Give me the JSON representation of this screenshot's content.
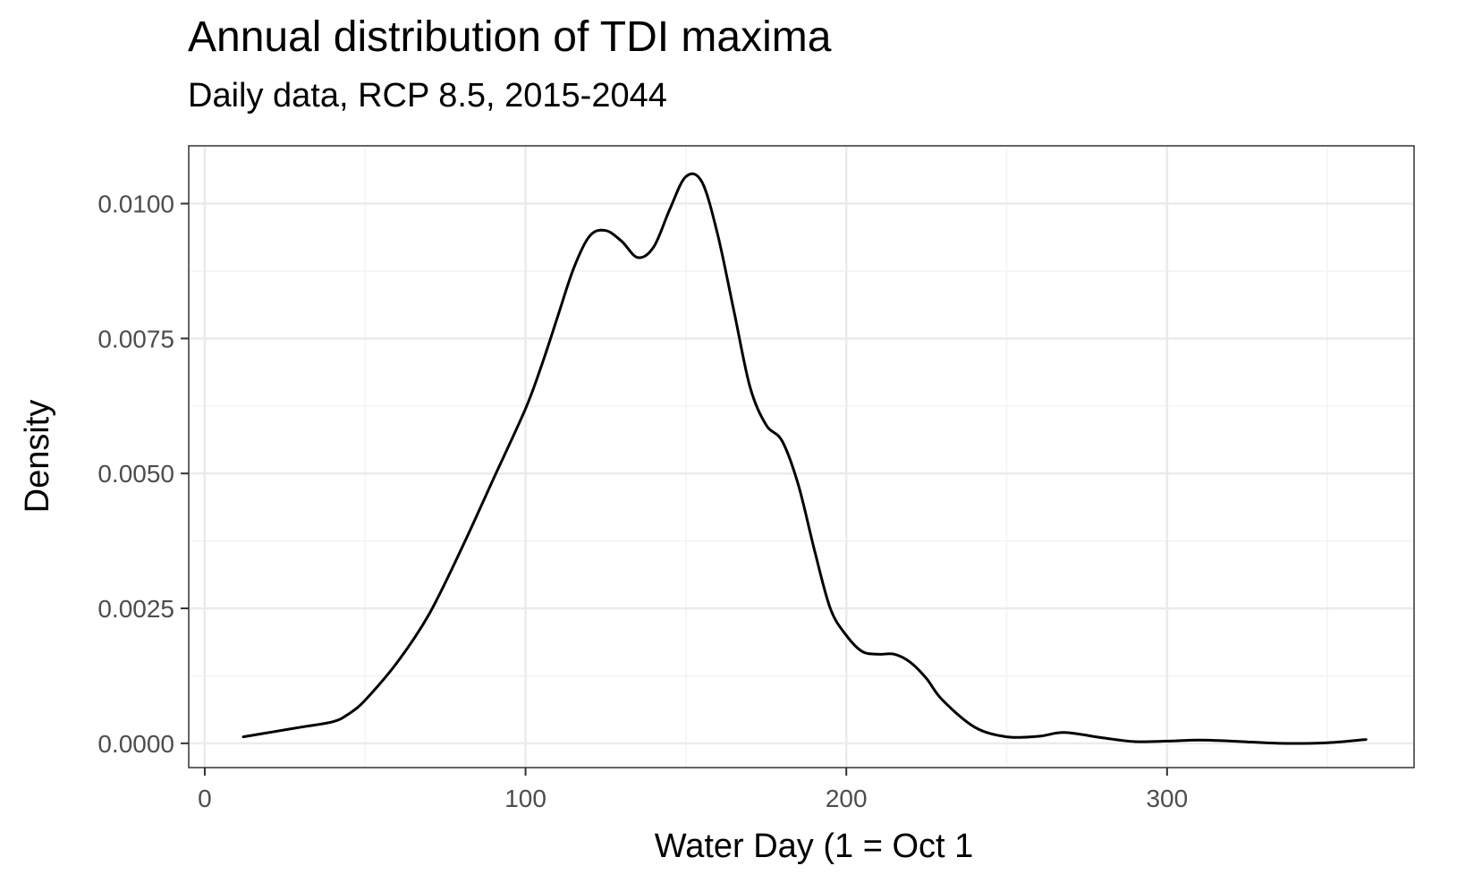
{
  "chart_data": {
    "type": "line",
    "title": "Annual distribution of TDI maxima",
    "subtitle": "Daily data, RCP 8.5, 2015-2044",
    "xlabel": "Water Day (1 = Oct 1",
    "ylabel": "Density",
    "xlim": [
      -5,
      377
    ],
    "ylim": [
      -0.00045,
      0.01107
    ],
    "x_ticks": [
      0,
      100,
      200,
      300
    ],
    "x_tick_labels": [
      "0",
      "100",
      "200",
      "300"
    ],
    "x_minor_ticks": [
      50,
      150,
      250,
      350
    ],
    "y_ticks": [
      0.0,
      0.0025,
      0.005,
      0.0075,
      0.01
    ],
    "y_tick_labels": [
      "0.0000",
      "0.0025",
      "0.0050",
      "0.0075",
      "0.0100"
    ],
    "y_minor_ticks": [
      0.00125,
      0.00375,
      0.00625,
      0.00875
    ],
    "grid": true,
    "legend": "none",
    "colors": {
      "line": "#000000",
      "grid_major": "#ebebeb",
      "grid_minor": "#f3f3f3",
      "panel_border": "#333333",
      "tick_text": "#4d4d4d"
    },
    "series": [
      {
        "x": [
          12,
          20,
          30,
          40,
          45,
          50,
          60,
          70,
          80,
          90,
          100,
          105,
          110,
          115,
          120,
          125,
          130,
          135,
          140,
          145,
          150,
          155,
          160,
          165,
          170,
          175,
          180,
          185,
          190,
          195,
          200,
          205,
          210,
          215,
          220,
          225,
          230,
          240,
          250,
          260,
          268,
          280,
          290,
          300,
          310,
          320,
          335,
          350,
          362
        ],
        "y": [
          0.00012,
          0.0002,
          0.0003,
          0.0004,
          0.00055,
          0.0008,
          0.0015,
          0.0024,
          0.0036,
          0.0049,
          0.0062,
          0.007,
          0.0079,
          0.0088,
          0.0094,
          0.0095,
          0.0093,
          0.009,
          0.0092,
          0.0099,
          0.0105,
          0.0104,
          0.0094,
          0.008,
          0.0066,
          0.0059,
          0.0056,
          0.0048,
          0.0036,
          0.0025,
          0.002,
          0.0017,
          0.00165,
          0.00165,
          0.0015,
          0.0012,
          0.0008,
          0.0003,
          0.00012,
          0.00013,
          0.0002,
          0.0001,
          3e-05,
          4e-05,
          6e-05,
          4e-05,
          0.0,
          1e-05,
          7e-05
        ]
      }
    ]
  }
}
